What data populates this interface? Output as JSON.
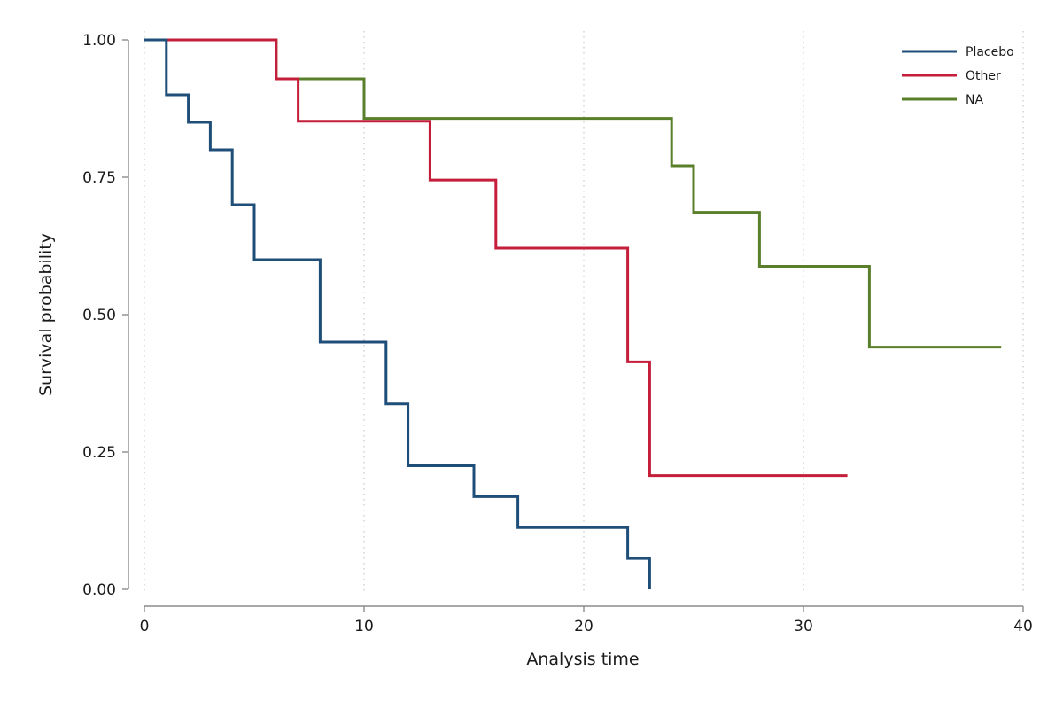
{
  "chart_data": {
    "type": "line",
    "step": true,
    "title": "",
    "xlabel": "Analysis time",
    "ylabel": "Survival probability",
    "xlim": [
      0,
      40
    ],
    "ylim": [
      0,
      1
    ],
    "xticks": [
      0,
      10,
      20,
      30,
      40
    ],
    "xtick_labels": [
      "0",
      "10",
      "20",
      "30",
      "40"
    ],
    "yticks": [
      0,
      0.25,
      0.5,
      0.75,
      1.0
    ],
    "ytick_labels": [
      "0.00",
      "0.25",
      "0.50",
      "0.75",
      "1.00"
    ],
    "grid": "vertical dotted at x ticks",
    "legend_position": "top-right",
    "series": [
      {
        "name": "Placebo",
        "color": "#1f4e79",
        "x": [
          0,
          1,
          2,
          3,
          4,
          5,
          8,
          11,
          12,
          15,
          17,
          22,
          23
        ],
        "y": [
          1.0,
          0.9,
          0.85,
          0.8,
          0.7,
          0.6,
          0.45,
          0.3375,
          0.225,
          0.1688,
          0.1125,
          0.0563,
          0.0
        ],
        "end_x": 23
      },
      {
        "name": "Other",
        "color": "#c41e3a",
        "x": [
          0,
          6,
          7,
          10,
          13,
          16,
          22,
          23
        ],
        "y": [
          1.0,
          0.929,
          0.852,
          0.852,
          0.745,
          0.621,
          0.414,
          0.207
        ],
        "end_x": 32
      },
      {
        "name": "NA",
        "color": "#5a7f2b",
        "x": [
          0,
          6,
          10,
          24,
          25,
          28,
          33
        ],
        "y": [
          1.0,
          0.929,
          0.857,
          0.771,
          0.686,
          0.588,
          0.441
        ],
        "end_x": 39
      }
    ]
  }
}
